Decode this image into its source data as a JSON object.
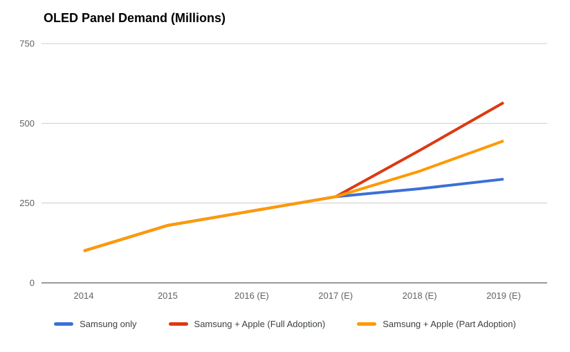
{
  "chart_data": {
    "type": "line",
    "title": "OLED Panel Demand (Millions)",
    "categories": [
      "2014",
      "2015",
      "2016 (E)",
      "2017 (E)",
      "2018 (E)",
      "2019 (E)"
    ],
    "series": [
      {
        "name": "Samsung only",
        "color": "#3c6fd6",
        "values": [
          100,
          180,
          225,
          270,
          295,
          325
        ]
      },
      {
        "name": "Samsung + Apple (Full Adoption)",
        "color": "#dc3912",
        "values": [
          100,
          180,
          225,
          270,
          415,
          565
        ]
      },
      {
        "name": "Samsung + Apple (Part Adoption)",
        "color": "#ff9900",
        "values": [
          100,
          180,
          225,
          270,
          350,
          445
        ]
      }
    ],
    "xlabel": "",
    "ylabel": "",
    "ylim": [
      0,
      750
    ],
    "yticks": [
      0,
      250,
      500,
      750
    ],
    "grid": true,
    "legend_position": "bottom",
    "colors": {
      "gridline": "#cccccc",
      "axis_line": "#333333",
      "tick_text": "#616161",
      "legend_text": "#3c4043",
      "title_text": "#000000",
      "background": "#ffffff"
    }
  }
}
